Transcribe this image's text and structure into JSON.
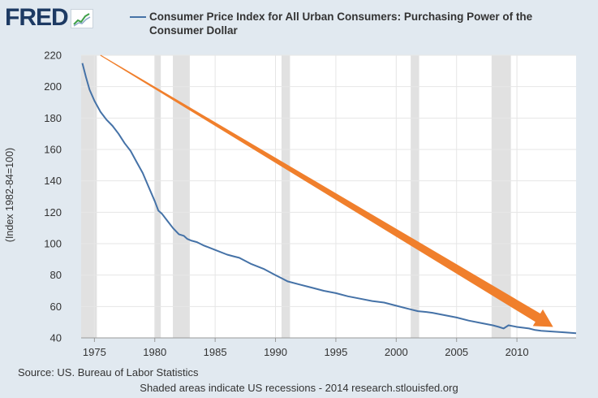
{
  "logo": {
    "text": "FRED",
    "icon": "trend-chart-icon"
  },
  "chart_data": {
    "type": "line",
    "title": "Consumer Price Index for All Urban Consumers: Purchasing Power of the Consumer Dollar",
    "ylabel": "(Index 1982-84=100)",
    "xlabel": "",
    "xlim": [
      1973.9,
      2014.9
    ],
    "ylim": [
      40,
      220
    ],
    "x_ticks": [
      1975,
      1980,
      1985,
      1990,
      1995,
      2000,
      2005,
      2010
    ],
    "y_ticks": [
      40,
      60,
      80,
      100,
      120,
      140,
      160,
      180,
      200,
      220
    ],
    "grid": true,
    "legend": "top",
    "series": [
      {
        "name": "Consumer Price Index for All Urban Consumers: Purchasing Power of the Consumer Dollar",
        "color": "#4572a7",
        "points": [
          [
            1974.0,
            215
          ],
          [
            1974.3,
            206
          ],
          [
            1974.6,
            198
          ],
          [
            1975.0,
            191
          ],
          [
            1975.5,
            184
          ],
          [
            1976.0,
            179
          ],
          [
            1976.5,
            175
          ],
          [
            1977.0,
            170
          ],
          [
            1977.5,
            164
          ],
          [
            1978.0,
            159
          ],
          [
            1978.5,
            152
          ],
          [
            1979.0,
            145
          ],
          [
            1979.5,
            136
          ],
          [
            1980.0,
            127
          ],
          [
            1980.3,
            121
          ],
          [
            1980.6,
            119
          ],
          [
            1981.0,
            115
          ],
          [
            1981.5,
            110
          ],
          [
            1982.0,
            106
          ],
          [
            1982.4,
            105
          ],
          [
            1982.7,
            103
          ],
          [
            1983.0,
            102
          ],
          [
            1983.5,
            101
          ],
          [
            1984.0,
            99
          ],
          [
            1985.0,
            96
          ],
          [
            1986.0,
            93
          ],
          [
            1986.5,
            92
          ],
          [
            1987.0,
            91
          ],
          [
            1988.0,
            87
          ],
          [
            1989.0,
            84
          ],
          [
            1990.0,
            80
          ],
          [
            1990.5,
            78
          ],
          [
            1991.0,
            76
          ],
          [
            1992.0,
            74
          ],
          [
            1993.0,
            72
          ],
          [
            1994.0,
            70
          ],
          [
            1995.0,
            68.5
          ],
          [
            1996.0,
            66.5
          ],
          [
            1997.0,
            65
          ],
          [
            1998.0,
            63.5
          ],
          [
            1999.0,
            62.5
          ],
          [
            2000.0,
            60.5
          ],
          [
            2001.0,
            58.5
          ],
          [
            2001.8,
            57
          ],
          [
            2002.5,
            56.5
          ],
          [
            2003.0,
            56
          ],
          [
            2004.0,
            54.5
          ],
          [
            2005.0,
            53
          ],
          [
            2006.0,
            51
          ],
          [
            2007.0,
            49.5
          ],
          [
            2008.0,
            48
          ],
          [
            2008.5,
            47
          ],
          [
            2008.9,
            46
          ],
          [
            2009.3,
            48
          ],
          [
            2010.0,
            47
          ],
          [
            2011.0,
            46
          ],
          [
            2011.5,
            45
          ],
          [
            2012.0,
            44.5
          ],
          [
            2013.0,
            44
          ],
          [
            2014.0,
            43.5
          ],
          [
            2014.9,
            43
          ]
        ]
      }
    ],
    "recessions": [
      [
        1973.9,
        1975.2
      ],
      [
        1980.0,
        1980.5
      ],
      [
        1981.5,
        1982.9
      ],
      [
        1990.5,
        1991.2
      ],
      [
        2001.2,
        2001.9
      ],
      [
        2007.9,
        2009.5
      ]
    ],
    "recession_color": "#e1e1e1",
    "annotations": [
      {
        "type": "arrow",
        "color": "#f07f2c",
        "from": [
          1975.5,
          220
        ],
        "to": [
          2013.0,
          47
        ]
      }
    ]
  },
  "footer": {
    "source": "Source: US. Bureau of Labor Statistics",
    "note": "Shaded areas indicate US recessions - 2014 research.stlouisfed.org"
  }
}
